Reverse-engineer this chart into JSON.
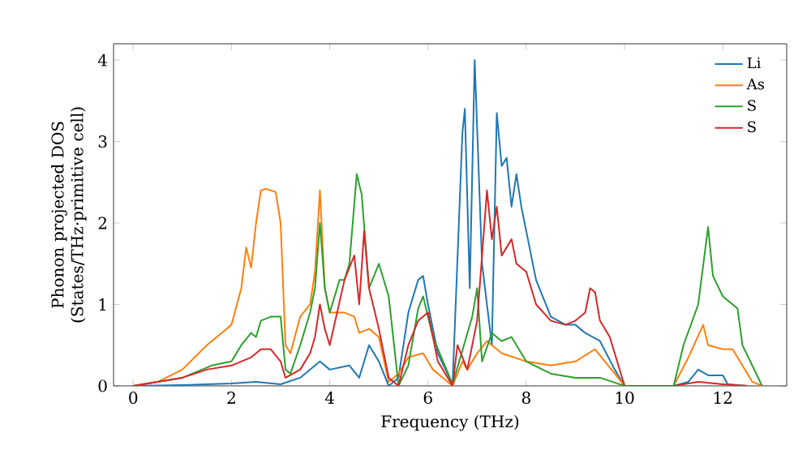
{
  "chart_data": {
    "type": "line",
    "xlabel": "Frequency (THz)",
    "ylabel": "Phonon projected DOS\n(States/THz·primitive cell)",
    "xlim": [
      -0.4,
      13.3
    ],
    "ylim": [
      0,
      4.2
    ],
    "xticks": [
      0,
      2,
      4,
      6,
      8,
      10,
      12
    ],
    "yticks": [
      0,
      1,
      2,
      3,
      4
    ],
    "legend": "top right",
    "grid": false,
    "marker": "none",
    "line_style": "solid",
    "series": [
      {
        "name": "Li",
        "color": "#1f77b4",
        "x": [
          0,
          1,
          2,
          2.5,
          3,
          3.4,
          3.8,
          4.0,
          4.4,
          4.6,
          4.8,
          5.0,
          5.2,
          5.4,
          5.6,
          5.8,
          5.9,
          6.0,
          6.2,
          6.5,
          6.7,
          6.75,
          6.85,
          6.95,
          7.1,
          7.3,
          7.4,
          7.5,
          7.6,
          7.7,
          7.8,
          7.9,
          8.0,
          8.2,
          8.5,
          8.8,
          9.0,
          9.2,
          9.5,
          9.8,
          10.0,
          11.0,
          11.3,
          11.5,
          11.7,
          12.0,
          12.1,
          12.5
        ],
        "values": [
          0,
          0.01,
          0.03,
          0.05,
          0.02,
          0.1,
          0.3,
          0.2,
          0.25,
          0.1,
          0.5,
          0.3,
          0,
          0.1,
          0.9,
          1.3,
          1.35,
          1.0,
          0.4,
          0.02,
          3.1,
          3.4,
          1.2,
          4.0,
          1.5,
          0.5,
          3.35,
          2.7,
          2.8,
          2.2,
          2.6,
          2.2,
          1.9,
          1.3,
          0.85,
          0.75,
          0.75,
          0.65,
          0.55,
          0.2,
          0,
          0,
          0.05,
          0.2,
          0.13,
          0.13,
          0.02,
          0
        ]
      },
      {
        "name": "As",
        "color": "#ff7f0e",
        "x": [
          0,
          0.5,
          1,
          1.5,
          1.8,
          2.0,
          2.2,
          2.3,
          2.4,
          2.5,
          2.6,
          2.7,
          2.9,
          3.0,
          3.1,
          3.2,
          3.4,
          3.6,
          3.7,
          3.8,
          3.9,
          4.0,
          4.3,
          4.5,
          4.6,
          4.8,
          5.0,
          5.2,
          5.4,
          5.6,
          5.9,
          6.1,
          6.5,
          6.7,
          6.8,
          7.0,
          7.2,
          7.5,
          8.0,
          8.5,
          9.0,
          9.4,
          9.6,
          10.0,
          11.0,
          11.3,
          11.6,
          11.7,
          12.0,
          12.2,
          12.6,
          12.8
        ],
        "values": [
          0,
          0.05,
          0.2,
          0.5,
          0.65,
          0.75,
          1.2,
          1.7,
          1.45,
          2.0,
          2.4,
          2.42,
          2.38,
          2.0,
          0.5,
          0.4,
          0.85,
          1.0,
          1.4,
          2.4,
          1.2,
          0.9,
          0.9,
          0.85,
          0.65,
          0.7,
          0.6,
          0.05,
          0.15,
          0.35,
          0.4,
          0.2,
          0,
          0.3,
          0.2,
          0.4,
          0.55,
          0.4,
          0.3,
          0.25,
          0.3,
          0.45,
          0.3,
          0,
          0,
          0.35,
          0.75,
          0.5,
          0.45,
          0.45,
          0.05,
          0
        ]
      },
      {
        "name": "S",
        "color": "#2ca02c",
        "x": [
          0,
          1,
          1.6,
          2.0,
          2.2,
          2.4,
          2.5,
          2.6,
          2.8,
          3.0,
          3.1,
          3.2,
          3.4,
          3.6,
          3.7,
          3.8,
          3.9,
          4.0,
          4.2,
          4.3,
          4.4,
          4.55,
          4.65,
          4.8,
          5.0,
          5.2,
          5.4,
          5.6,
          5.8,
          5.9,
          6.1,
          6.5,
          6.9,
          7.0,
          7.1,
          7.3,
          7.5,
          7.7,
          8.0,
          8.5,
          9.0,
          9.5,
          10.0,
          11.0,
          11.2,
          11.5,
          11.7,
          11.8,
          12.0,
          12.3,
          12.4,
          12.8
        ],
        "values": [
          0,
          0.1,
          0.25,
          0.3,
          0.5,
          0.65,
          0.6,
          0.8,
          0.85,
          0.85,
          0.2,
          0.15,
          0.5,
          0.9,
          1.2,
          2.0,
          1.2,
          0.9,
          1.3,
          1.3,
          1.5,
          2.6,
          2.35,
          1.2,
          1.5,
          1.1,
          0,
          0.25,
          0.95,
          1.1,
          0.6,
          0.02,
          0.85,
          1.2,
          0.3,
          0.65,
          0.55,
          0.6,
          0.3,
          0.15,
          0.1,
          0.1,
          0,
          0,
          0.5,
          1.0,
          1.95,
          1.35,
          1.1,
          0.95,
          0.5,
          0
        ]
      },
      {
        "name": "S",
        "color": "#d62728",
        "x": [
          0,
          1,
          1.5,
          2.0,
          2.4,
          2.6,
          2.8,
          3.0,
          3.1,
          3.4,
          3.6,
          3.7,
          3.8,
          3.9,
          4.0,
          4.3,
          4.5,
          4.6,
          4.7,
          4.8,
          5.0,
          5.2,
          5.4,
          5.6,
          5.8,
          6.0,
          6.2,
          6.5,
          6.6,
          6.8,
          7.0,
          7.2,
          7.3,
          7.4,
          7.5,
          7.7,
          7.8,
          8.0,
          8.2,
          8.5,
          8.8,
          9.0,
          9.2,
          9.3,
          9.4,
          9.5,
          9.7,
          10.0,
          11.0,
          11.5,
          12.0,
          12.5
        ],
        "values": [
          0,
          0.1,
          0.2,
          0.25,
          0.35,
          0.45,
          0.45,
          0.3,
          0.1,
          0.2,
          0.4,
          0.6,
          1.0,
          0.7,
          0.5,
          1.3,
          1.6,
          1.0,
          1.9,
          1.2,
          0.7,
          0.1,
          0,
          0.5,
          0.8,
          0.9,
          0.3,
          0,
          0.5,
          0.2,
          0.8,
          2.4,
          1.8,
          2.2,
          1.6,
          1.8,
          1.5,
          1.4,
          1.0,
          0.8,
          0.75,
          0.8,
          0.9,
          1.2,
          1.15,
          0.8,
          0.6,
          0,
          0,
          0.05,
          0.02,
          0
        ]
      }
    ]
  }
}
